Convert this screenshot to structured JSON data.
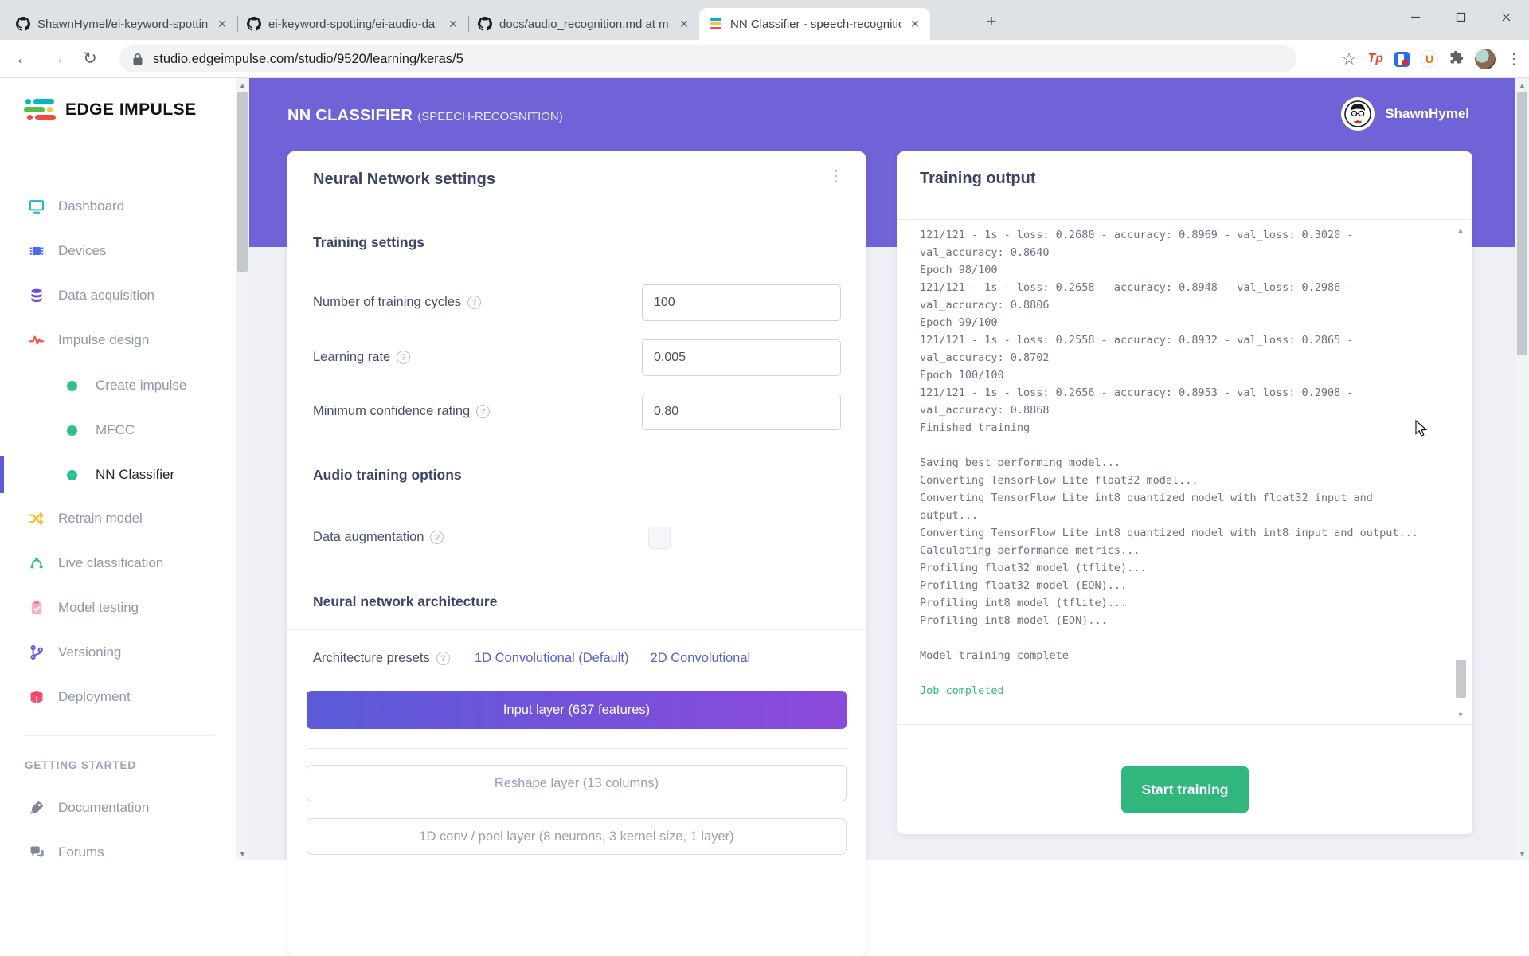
{
  "browser": {
    "tabs": [
      {
        "icon": "github-icon",
        "title": "ShawnHymel/ei-keyword-spottin",
        "active": false
      },
      {
        "icon": "github-icon",
        "title": "ei-keyword-spotting/ei-audio-da",
        "active": false
      },
      {
        "icon": "github-icon",
        "title": "docs/audio_recognition.md at m",
        "active": false
      },
      {
        "icon": "edge-impulse-icon",
        "title": "NN Classifier - speech-recognitio",
        "active": true
      }
    ],
    "url": "studio.edgeimpulse.com/studio/9520/learning/keras/5",
    "extensions": {
      "tp": "Tp",
      "u": "U"
    }
  },
  "sidebar": {
    "logo_text": "EDGE IMPULSE",
    "items": [
      {
        "label": "Dashboard",
        "icon": "dashboard-icon",
        "color": "#1fb6cb"
      },
      {
        "label": "Devices",
        "icon": "devices-icon",
        "color": "#4b6bf5"
      },
      {
        "label": "Data acquisition",
        "icon": "data-acquisition-icon",
        "color": "#7048e8"
      },
      {
        "label": "Impulse design",
        "icon": "impulse-design-icon",
        "color": "#f4503f"
      },
      {
        "label": "Create impulse",
        "sub": true,
        "dot": "#2fbf8f"
      },
      {
        "label": "MFCC",
        "sub": true,
        "dot": "#2fbf8f"
      },
      {
        "label": "NN Classifier",
        "sub": true,
        "dot": "#2fbf8f",
        "active": true
      },
      {
        "label": "Retrain model",
        "icon": "retrain-icon",
        "color": "#f5c02f"
      },
      {
        "label": "Live classification",
        "icon": "live-classification-icon",
        "color": "#2fbf8f"
      },
      {
        "label": "Model testing",
        "icon": "model-testing-icon",
        "color": "#f17da2"
      },
      {
        "label": "Versioning",
        "icon": "versioning-icon",
        "color": "#5f5bd9"
      },
      {
        "label": "Deployment",
        "icon": "deployment-icon",
        "color": "#f23e63"
      }
    ],
    "getting_started": {
      "heading": "GETTING STARTED",
      "items": [
        {
          "label": "Documentation",
          "icon": "documentation-icon"
        },
        {
          "label": "Forums",
          "icon": "forums-icon"
        }
      ]
    }
  },
  "header": {
    "title": "NN CLASSIFIER",
    "subtitle": "(SPEECH-RECOGNITION)",
    "user": "ShawnHymel"
  },
  "settings_card": {
    "title": "Neural Network settings",
    "training_heading": "Training settings",
    "rows": [
      {
        "label": "Number of training cycles",
        "value": "100"
      },
      {
        "label": "Learning rate",
        "value": "0.005"
      },
      {
        "label": "Minimum confidence rating",
        "value": "0.80"
      }
    ],
    "audio_heading": "Audio training options",
    "augmentation_label": "Data augmentation",
    "augmentation_checked": false,
    "architecture_heading": "Neural network architecture",
    "presets_label": "Architecture presets",
    "preset_links": [
      "1D Convolutional (Default)",
      "2D Convolutional"
    ],
    "layers": [
      "Input layer (637 features)",
      "Reshape layer (13 columns)",
      "1D conv / pool layer (8 neurons, 3 kernel size, 1 layer)"
    ]
  },
  "training_card": {
    "title": "Training output",
    "console_lines": [
      "121/121 - 1s - loss: 0.2680 - accuracy: 0.8969 - val_loss: 0.3020 -",
      "val_accuracy: 0.8640",
      "Epoch 98/100",
      "121/121 - 1s - loss: 0.2658 - accuracy: 0.8948 - val_loss: 0.2986 -",
      "val_accuracy: 0.8806",
      "Epoch 99/100",
      "121/121 - 1s - loss: 0.2558 - accuracy: 0.8932 - val_loss: 0.2865 -",
      "val_accuracy: 0.8702",
      "Epoch 100/100",
      "121/121 - 1s - loss: 0.2656 - accuracy: 0.8953 - val_loss: 0.2908 -",
      "val_accuracy: 0.8868",
      "Finished training",
      "",
      "Saving best performing model...",
      "Converting TensorFlow Lite float32 model...",
      "Converting TensorFlow Lite int8 quantized model with float32 input and",
      "output...",
      "Converting TensorFlow Lite int8 quantized model with int8 input and output...",
      "Calculating performance metrics...",
      "Profiling float32 model (tflite)...",
      "Profiling float32 model (EON)...",
      "Profiling int8 model (tflite)...",
      "Profiling int8 model (EON)...",
      "",
      "Model training complete",
      ""
    ],
    "job_status": "Job completed",
    "start_button": "Start training"
  },
  "logo_colors": {
    "teal": "#00b8c4",
    "green": "#58bb4c",
    "yellow": "#f6c344",
    "red": "#ef4b3f"
  }
}
